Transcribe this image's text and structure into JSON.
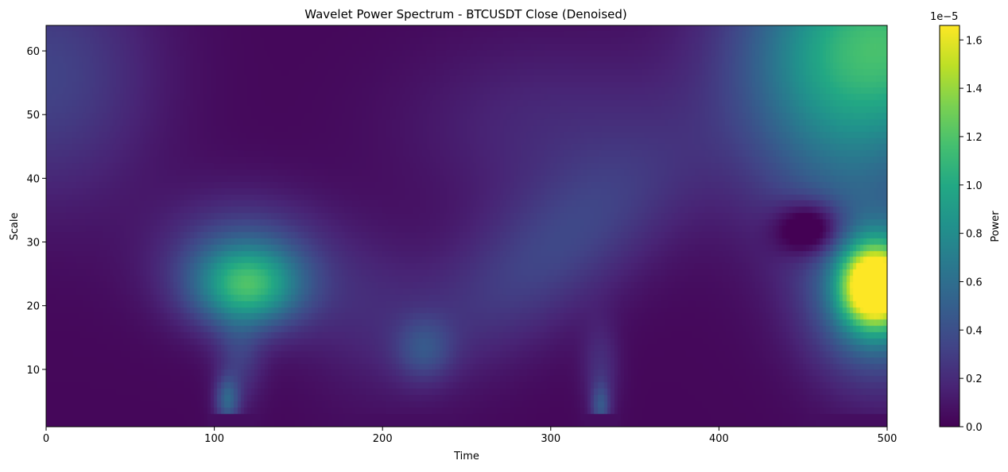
{
  "chart_data": {
    "type": "heatmap",
    "title": "Wavelet Power Spectrum - BTCUSDT Close (Denoised)",
    "xlabel": "Time",
    "ylabel": "Scale",
    "xlim": [
      0,
      500
    ],
    "ylim": [
      1,
      64
    ],
    "x_ticks": [
      "0",
      "100",
      "200",
      "300",
      "400",
      "500"
    ],
    "y_ticks": [
      "10",
      "20",
      "30",
      "40",
      "50",
      "60"
    ],
    "colorbar": {
      "label": "Power",
      "exponent_label": "1e−5",
      "range": [
        0,
        1.66
      ],
      "ticks": [
        "0.0",
        "0.2",
        "0.4",
        "0.6",
        "0.8",
        "1.0",
        "1.2",
        "1.4",
        "1.6"
      ],
      "colormap": "viridis"
    },
    "grid": false,
    "hotspots": [
      {
        "time": 120,
        "scale": 23,
        "power": 0.85
      },
      {
        "time": 108,
        "scale": 5,
        "power": 0.45
      },
      {
        "time": 330,
        "scale": 4,
        "power": 0.35
      },
      {
        "time": 320,
        "scale": 33,
        "power": 0.32
      },
      {
        "time": 225,
        "scale": 13,
        "power": 0.28
      },
      {
        "time": 493,
        "scale": 23,
        "power": 1.66
      },
      {
        "time": 500,
        "scale": 62,
        "power": 1.1
      },
      {
        "time": 10,
        "scale": 55,
        "power": 0.3
      }
    ]
  }
}
